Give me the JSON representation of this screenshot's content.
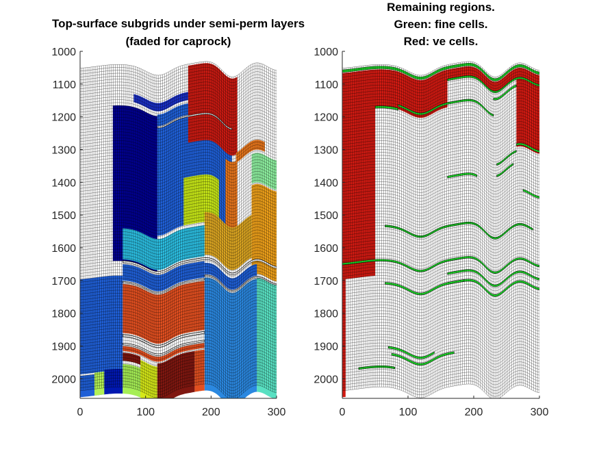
{
  "chart_data": [
    {
      "type": "mesh",
      "title": [
        "Top-surface subgrids under semi-perm layers",
        "(faded for caprock)"
      ],
      "xlim": [
        0,
        300
      ],
      "ylim": [
        1000,
        2060
      ],
      "y_reversed": true,
      "xticks": [
        "0",
        "100",
        "200",
        "300"
      ],
      "yticks": [
        "1000",
        "1100",
        "1200",
        "1300",
        "1400",
        "1500",
        "1600",
        "1700",
        "1800",
        "1900",
        "2000"
      ],
      "mesh": {
        "x_range": [
          0,
          300
        ],
        "columns": 100,
        "layers": 110,
        "cell_color": "#ffffff",
        "edge_color": "#000000"
      },
      "regions": [
        {
          "color": "#00008f",
          "x": [
            50,
            118
          ],
          "depth": [
            1180,
            1655
          ]
        },
        {
          "color": "#1f5fd6",
          "x": [
            118,
            232
          ],
          "depth": [
            1175,
            1545
          ]
        },
        {
          "color": "#ffffff",
          "x": [
            118,
            232
          ],
          "depth": [
            1210,
            1214
          ]
        },
        {
          "color": "#c8e817",
          "x": [
            158,
            212
          ],
          "depth": [
            1400,
            1545
          ]
        },
        {
          "color": "#1a2fc4",
          "x": [
            82,
            165
          ],
          "depth": [
            1140,
            1165
          ]
        },
        {
          "color": "#c91a12",
          "x": [
            165,
            240
          ],
          "depth": [
            1060,
            1295
          ]
        },
        {
          "color": "#e8761c",
          "x": [
            238,
            282
          ],
          "depth": [
            1290,
            1320
          ]
        },
        {
          "color": "#e8761c",
          "x": [
            222,
            240
          ],
          "depth": [
            1315,
            1590
          ]
        },
        {
          "color": "#8ef0a0",
          "x": [
            262,
            300
          ],
          "depth": [
            1330,
            1420
          ]
        },
        {
          "color": "#eea01a",
          "x": [
            262,
            300
          ],
          "depth": [
            1425,
            1700
          ]
        },
        {
          "color": "#dca622",
          "x": [
            190,
            262
          ],
          "depth": [
            1515,
            1645
          ]
        },
        {
          "color": "#2bbde0",
          "x": [
            65,
            190
          ],
          "depth": [
            1555,
            1650
          ]
        },
        {
          "color": "#1f5fd6",
          "x": [
            0,
            65
          ],
          "depth": [
            1700,
            1990
          ]
        },
        {
          "color": "#1f5fd6",
          "x": [
            65,
            190
          ],
          "depth": [
            1665,
            1715
          ]
        },
        {
          "color": "#1f5fd6",
          "x": [
            190,
            270
          ],
          "depth": [
            1670,
            1705
          ]
        },
        {
          "color": "#e14f20",
          "x": [
            65,
            190
          ],
          "depth": [
            1725,
            1875
          ]
        },
        {
          "color": "#e14f20",
          "x": [
            65,
            190
          ],
          "depth": [
            1915,
            1930
          ]
        },
        {
          "color": "#2b88e0",
          "x": [
            190,
            270
          ],
          "depth": [
            1715,
            2060
          ]
        },
        {
          "color": "#59e0c2",
          "x": [
            270,
            300
          ],
          "depth": [
            1710,
            2060
          ]
        },
        {
          "color": "#1f5fd6",
          "x": [
            0,
            65
          ],
          "depth": [
            1995,
            2060
          ]
        },
        {
          "color": "#b3f055",
          "x": [
            22,
            37
          ],
          "depth": [
            1990,
            2060
          ]
        },
        {
          "color": "#0018b0",
          "x": [
            37,
            65
          ],
          "depth": [
            1985,
            2060
          ]
        },
        {
          "color": "#7f1710",
          "x": [
            65,
            92
          ],
          "depth": [
            1935,
            1960
          ]
        },
        {
          "color": "#d6e818",
          "x": [
            92,
            118
          ],
          "depth": [
            1945,
            2060
          ]
        },
        {
          "color": "#a6ee55",
          "x": [
            65,
            92
          ],
          "depth": [
            1970,
            2060
          ]
        },
        {
          "color": "#7f1710",
          "x": [
            118,
            175
          ],
          "depth": [
            1935,
            2060
          ]
        },
        {
          "color": "#e14f20",
          "x": [
            175,
            190
          ],
          "depth": [
            1935,
            2060
          ]
        }
      ],
      "gaps": [
        {
          "x": [
            118,
            232
          ],
          "depth": [
            1212,
            1216
          ]
        },
        {
          "x": [
            65,
            300
          ],
          "depth": [
            1654,
            1660
          ]
        },
        {
          "x": [
            190,
            300
          ],
          "depth": [
            1707,
            1712
          ]
        },
        {
          "x": [
            65,
            190
          ],
          "depth": [
            1718,
            1722
          ]
        },
        {
          "x": [
            65,
            190
          ],
          "depth": [
            1880,
            1886
          ]
        },
        {
          "x": [
            65,
            190
          ],
          "depth": [
            1906,
            1911
          ]
        }
      ]
    },
    {
      "type": "mesh",
      "title": [
        "Remaining regions.",
        "Green: fine cells.",
        "Red: ve cells."
      ],
      "xlim": [
        0,
        300
      ],
      "ylim": [
        1000,
        2060
      ],
      "y_reversed": true,
      "xticks": [
        "0",
        "100",
        "200",
        "300"
      ],
      "yticks": [
        "1000",
        "1100",
        "1200",
        "1300",
        "1400",
        "1500",
        "1600",
        "1700",
        "1800",
        "1900",
        "2000"
      ],
      "mesh": {
        "x_range": [
          0,
          300
        ],
        "columns": 100,
        "layers": 110,
        "cell_color": "#ffffff",
        "edge_color": "#000000"
      },
      "regions": [
        {
          "color": "#d11a12",
          "x": [
            0,
            50
          ],
          "depth": [
            1070,
            1700
          ]
        },
        {
          "color": "#d11a12",
          "x": [
            50,
            160
          ],
          "depth": [
            1070,
            1185
          ]
        },
        {
          "color": "#d11a12",
          "x": [
            160,
            300
          ],
          "depth": [
            1070,
            1100
          ]
        },
        {
          "color": "#d11a12",
          "x": [
            265,
            300
          ],
          "depth": [
            1100,
            1310
          ]
        },
        {
          "color": "#d11a12",
          "x": [
            0,
            5
          ],
          "depth": [
            1700,
            2060
          ]
        }
      ],
      "fine_bands": [
        {
          "x": [
            0,
            300
          ],
          "depth": [
            1060,
            1068
          ]
        },
        {
          "x": [
            160,
            300
          ],
          "depth": [
            1098,
            1104
          ]
        },
        {
          "x": [
            230,
            265
          ],
          "depth": [
            1120,
            1126
          ]
        },
        {
          "x": [
            50,
            85
          ],
          "depth": [
            1182,
            1188
          ]
        },
        {
          "x": [
            85,
            230
          ],
          "depth": [
            1170,
            1176
          ]
        },
        {
          "x": [
            265,
            300
          ],
          "depth": [
            1300,
            1306
          ]
        },
        {
          "x": [
            235,
            265
          ],
          "depth": [
            1320,
            1326
          ]
        },
        {
          "x": [
            235,
            260
          ],
          "depth": [
            1355,
            1361
          ]
        },
        {
          "x": [
            160,
            205
          ],
          "depth": [
            1395,
            1401
          ]
        },
        {
          "x": [
            275,
            300
          ],
          "depth": [
            1440,
            1446
          ]
        },
        {
          "x": [
            65,
            290
          ],
          "depth": [
            1545,
            1551
          ]
        },
        {
          "x": [
            0,
            300
          ],
          "depth": [
            1650,
            1656
          ]
        },
        {
          "x": [
            160,
            300
          ],
          "depth": [
            1690,
            1696
          ]
        },
        {
          "x": [
            160,
            300
          ],
          "depth": [
            1720,
            1726
          ]
        },
        {
          "x": [
            65,
            185
          ],
          "depth": [
            1720,
            1726
          ]
        },
        {
          "x": [
            70,
            140
          ],
          "depth": [
            1915,
            1921
          ]
        },
        {
          "x": [
            75,
            170
          ],
          "depth": [
            1935,
            1941
          ]
        },
        {
          "x": [
            25,
            80
          ],
          "depth": [
            1975,
            1981
          ]
        }
      ],
      "region_edge_color": "#1a1a1a",
      "fine_color": "#1ee02a"
    }
  ]
}
